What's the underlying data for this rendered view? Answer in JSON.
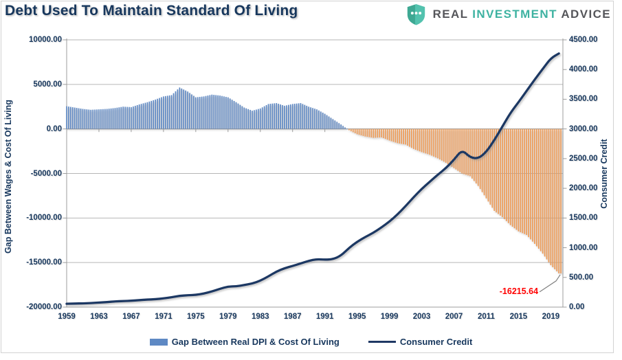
{
  "header": {
    "logo": {
      "word1": "REAL",
      "word2": "INVESTMENT",
      "word3": "ADVICE"
    }
  },
  "colors": {
    "navy_text": "#17375D",
    "bar_positive": "#5E89C4",
    "bar_negative": "#EE9B55",
    "credit_line": "#1F3864",
    "annotation_red": "#FF0000",
    "gridline": "#B6B6B6",
    "axis_line": "#9C9C9C",
    "logo_teal": "#3DB2A1",
    "logo_gray": "#55565A"
  },
  "chart_data": {
    "type": "combo-bar-line",
    "title": "Debt Used To Maintain Standard Of Living",
    "x_axis": {
      "start_year": 1959,
      "end_year": 2020.5,
      "tick_labels": [
        "1959",
        "1963",
        "1967",
        "1971",
        "1975",
        "1979",
        "1983",
        "1987",
        "1991",
        "1995",
        "1999",
        "2003",
        "2007",
        "2011",
        "2015",
        "2019"
      ]
    },
    "left_axis": {
      "title": "Gap Between Wages & Cost Of Living",
      "min": -20000,
      "max": 10000,
      "step": 5000,
      "tick_labels": [
        "10000.00",
        "5000.00",
        "0.00",
        "-5000.00",
        "-10000.00",
        "-15000.00",
        "-20000.00"
      ]
    },
    "right_axis": {
      "title": "Consumer Credit",
      "min": 0,
      "max": 4500,
      "step": 500,
      "tick_labels": [
        "4500.00",
        "4000.00",
        "3500.00",
        "3000.00",
        "2500.00",
        "2000.00",
        "1500.00",
        "1000.00",
        "500.00",
        "0.00"
      ]
    },
    "series": [
      {
        "name": "Gap Between Real DPI & Cost Of Living",
        "type": "bar",
        "axis": "left",
        "start_year": 1959,
        "values": [
          2550,
          2400,
          2250,
          2150,
          2200,
          2250,
          2350,
          2500,
          2450,
          2750,
          3000,
          3300,
          3650,
          3800,
          4650,
          4200,
          3550,
          3650,
          3850,
          3750,
          3550,
          3000,
          2400,
          2050,
          2300,
          2800,
          2900,
          2600,
          2800,
          2900,
          2500,
          2200,
          1700,
          1100,
          500,
          -150,
          -600,
          -850,
          -1000,
          -950,
          -1300,
          -1600,
          -1750,
          -2250,
          -2600,
          -2900,
          -3300,
          -3800,
          -4400,
          -5000,
          -5300,
          -6400,
          -7800,
          -9200,
          -9900,
          -10800,
          -11500,
          -11900,
          -12900,
          -14000,
          -15300,
          -16215.64
        ]
      },
      {
        "name": "Consumer Credit",
        "type": "line",
        "axis": "right",
        "start_year": 1959,
        "values": [
          56,
          60,
          63,
          68,
          76,
          85,
          96,
          102,
          107,
          117,
          127,
          132,
          147,
          166,
          190,
          199,
          205,
          228,
          264,
          308,
          347,
          350,
          371,
          397,
          444,
          517,
          599,
          655,
          693,
          735,
          779,
          808,
          798,
          806,
          866,
          997,
          1100,
          1180,
          1250,
          1340,
          1440,
          1560,
          1700,
          1850,
          1990,
          2110,
          2230,
          2340,
          2480,
          2650,
          2520,
          2500,
          2610,
          2810,
          3040,
          3270,
          3450,
          3640,
          3830,
          4010,
          4190,
          4270
        ]
      }
    ],
    "legend": [
      {
        "label": "Gap Between Real DPI & Cost Of Living"
      },
      {
        "label": "Consumer Credit"
      }
    ],
    "annotation": {
      "text": "-16215.64",
      "value": -16215.64
    }
  }
}
